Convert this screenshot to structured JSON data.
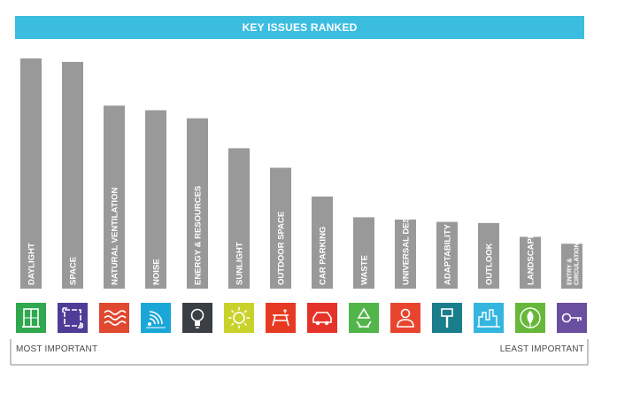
{
  "title": "KEY ISSUES RANKED",
  "colors": {
    "title_bg": "#3bbde0",
    "bar": "#999999",
    "axis_line": "#8a8a8a"
  },
  "scale": {
    "most_label": "MOST IMPORTANT",
    "least_label": "LEAST IMPORTANT"
  },
  "chart_data": {
    "type": "bar",
    "title": "KEY ISSUES RANKED",
    "xlabel": "",
    "ylabel": "",
    "ylim": [
      0,
      100
    ],
    "grid": false,
    "legend": "none",
    "categories": [
      "DAYLIGHT",
      "SPACE",
      "NATURAL VENTILATION",
      "NOISE",
      "ENERGY & RESOURCES",
      "SUNLIGHT",
      "OUTDOOR SPACE",
      "CAR PARKING",
      "WASTE",
      "UNIVERSAL DESIGN",
      "ADAPTABILITY",
      "OUTLOOK",
      "LANDSCAPE",
      "ENTRY & CIRCULATION"
    ],
    "values": [
      100,
      98.5,
      79.5,
      77.5,
      74,
      61,
      52.5,
      40,
      31,
      30,
      29,
      28.5,
      22.5,
      19.5
    ]
  },
  "icons": [
    {
      "name": "window-icon",
      "color": "#2fa84f"
    },
    {
      "name": "space-icon",
      "color": "#4e3c96"
    },
    {
      "name": "wind-icon",
      "color": "#e0482f"
    },
    {
      "name": "noise-icon",
      "color": "#1aa7d8"
    },
    {
      "name": "lightbulb-icon",
      "color": "#3a3f46"
    },
    {
      "name": "sun-icon",
      "color": "#c9d22a"
    },
    {
      "name": "picnic-table-icon",
      "color": "#e63a22"
    },
    {
      "name": "car-icon",
      "color": "#e6332a"
    },
    {
      "name": "recycle-icon",
      "color": "#52b54a"
    },
    {
      "name": "person-icon",
      "color": "#e8452f"
    },
    {
      "name": "paintbrush-icon",
      "color": "#1a7d8c"
    },
    {
      "name": "city-icon",
      "color": "#34b6e0"
    },
    {
      "name": "leaf-icon",
      "color": "#67b83a"
    },
    {
      "name": "key-icon",
      "color": "#6a4ea0"
    }
  ]
}
